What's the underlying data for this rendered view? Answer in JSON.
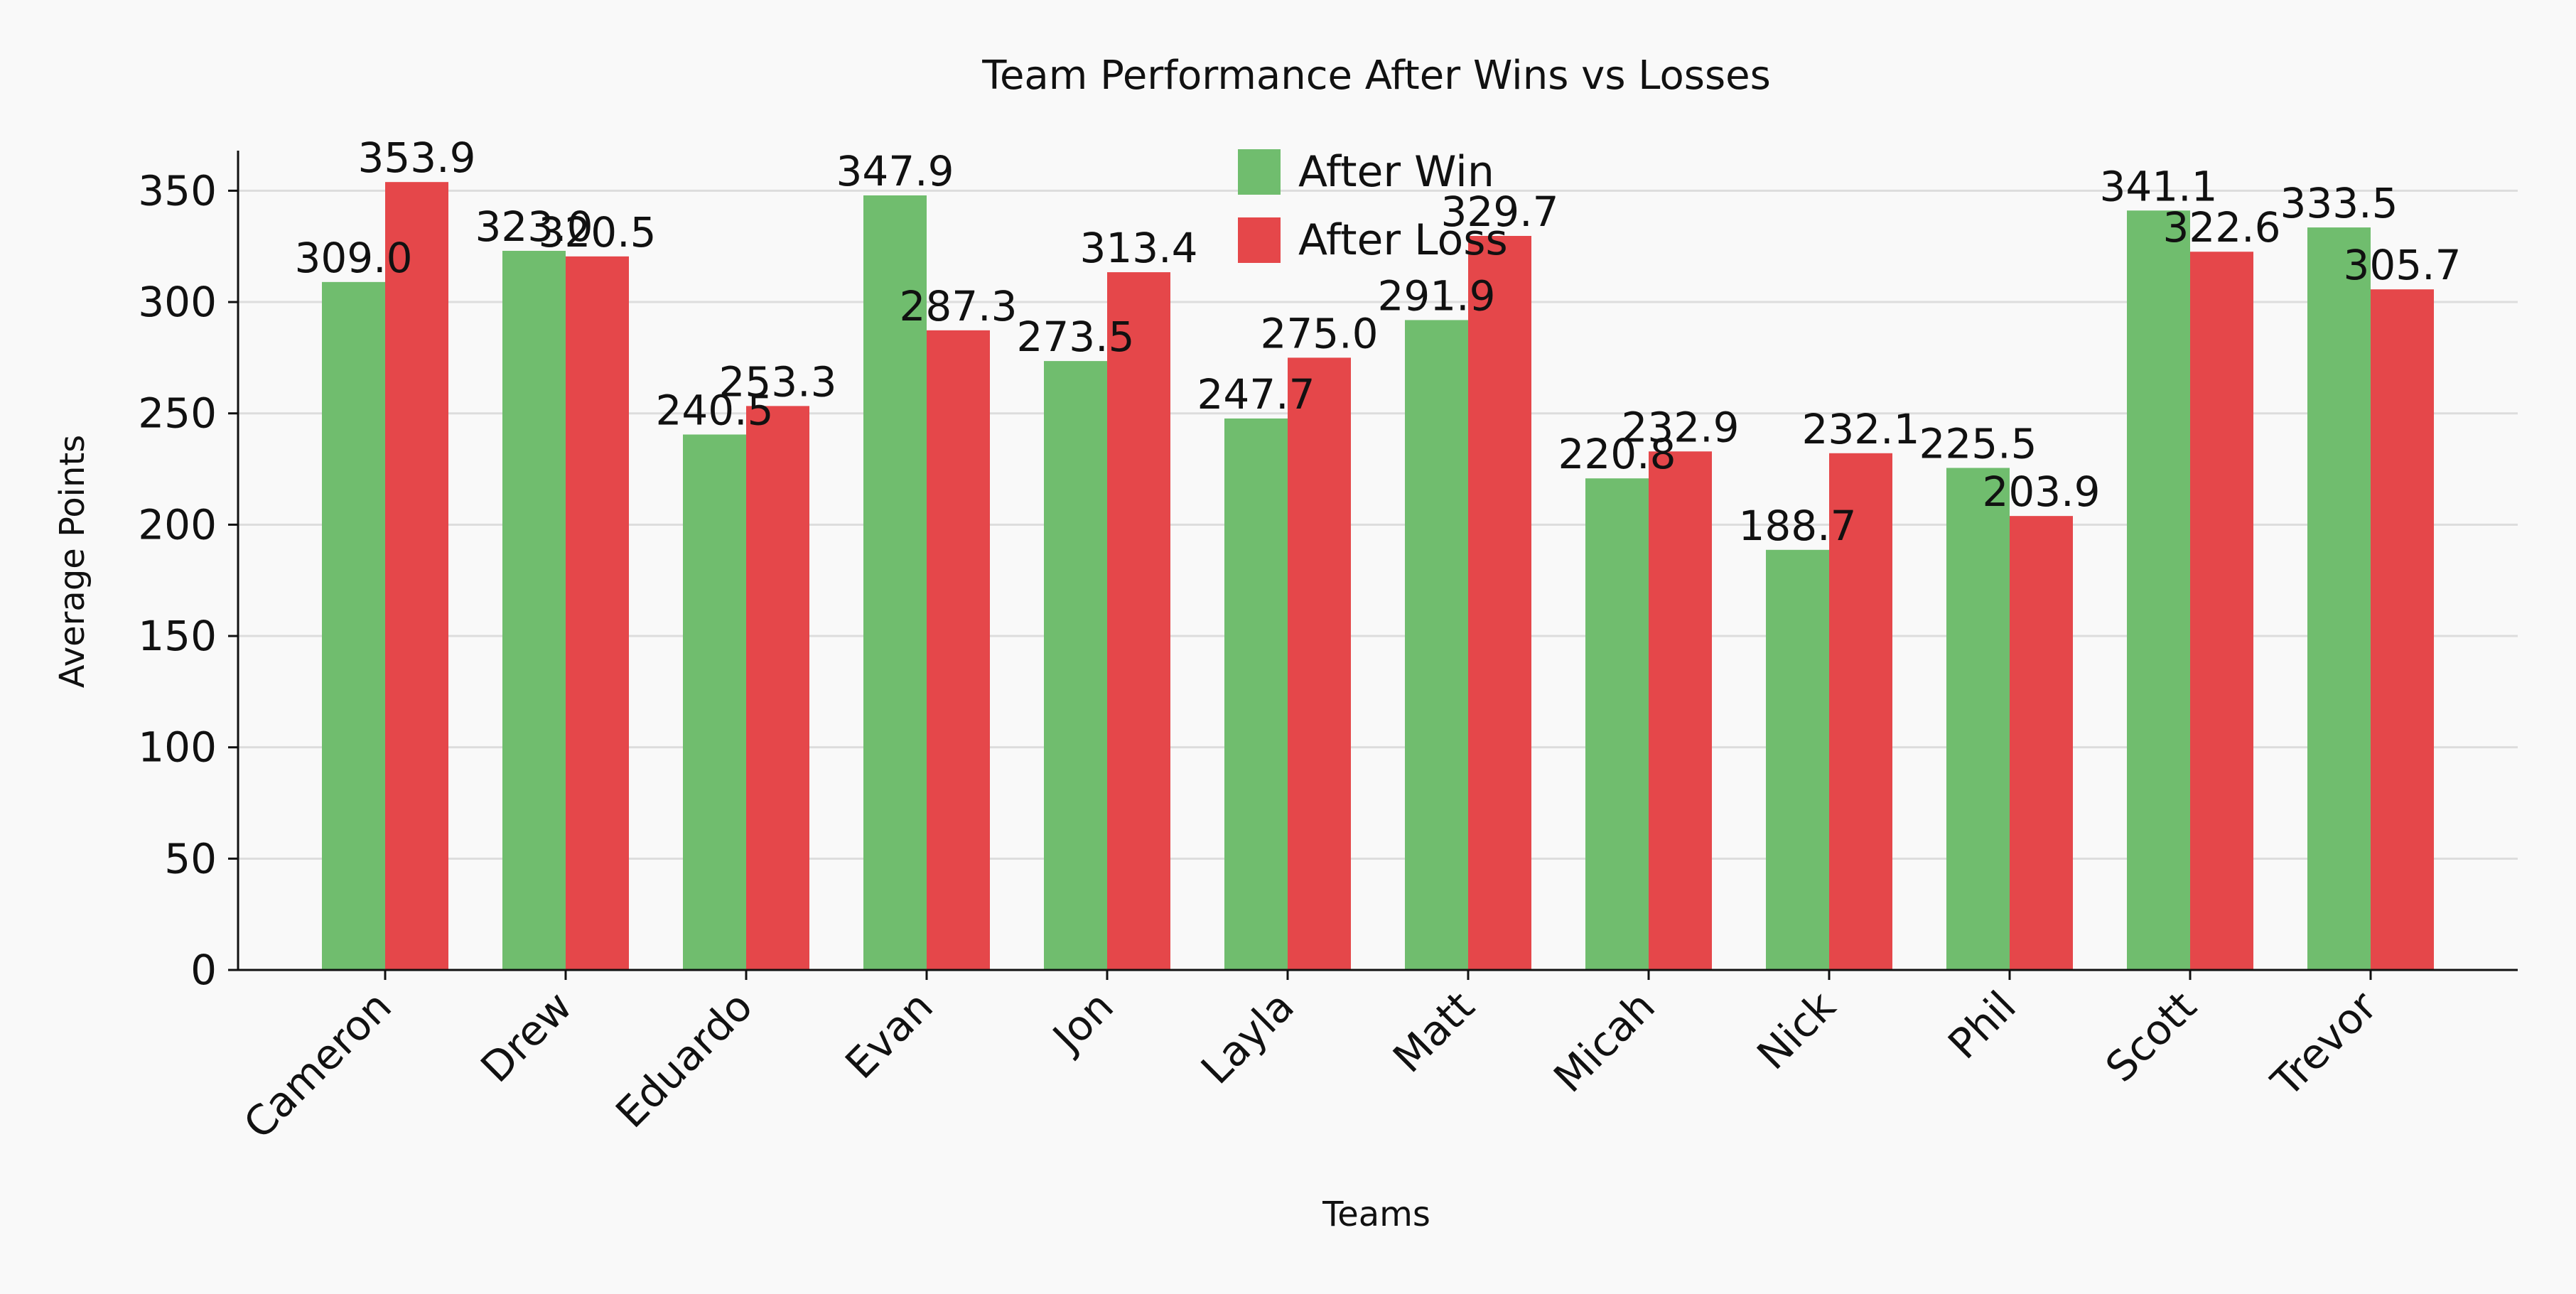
{
  "chart_data": {
    "type": "bar",
    "title": "Team Performance After Wins vs Losses",
    "xlabel": "Teams",
    "ylabel": "Average Points",
    "ylim": [
      0,
      368
    ],
    "yticks": [
      0,
      50,
      100,
      150,
      200,
      250,
      300,
      350
    ],
    "grid": true,
    "legend_position": "top-center",
    "categories": [
      "Cameron",
      "Drew",
      "Eduardo",
      "Evan",
      "Jon",
      "Layla",
      "Matt",
      "Micah",
      "Nick",
      "Phil",
      "Scott",
      "Trevor"
    ],
    "series": [
      {
        "name": "After Win",
        "color": "#70bd6e",
        "values": [
          309.0,
          323.0,
          240.5,
          347.9,
          273.5,
          247.7,
          291.9,
          220.8,
          188.7,
          225.5,
          341.1,
          333.5
        ]
      },
      {
        "name": "After Loss",
        "color": "#e5474a",
        "values": [
          353.9,
          320.5,
          253.3,
          287.3,
          313.4,
          275.0,
          329.7,
          232.9,
          232.1,
          203.9,
          322.6,
          305.7
        ]
      }
    ]
  }
}
